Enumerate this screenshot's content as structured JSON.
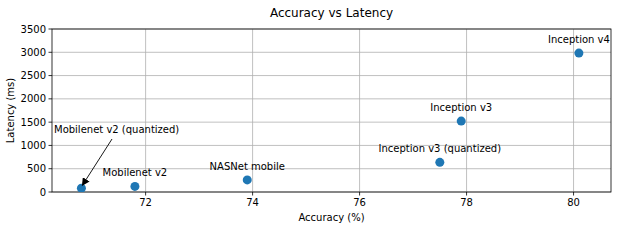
{
  "chart_data": {
    "type": "scatter",
    "title": "Accuracy vs Latency",
    "x_label": "Accuracy (%)",
    "y_label": "Latency (ms)",
    "labels": [
      "Mobilenet v2 (quantized)",
      "Mobilenet v2",
      "NASNet mobile",
      "Inception v3 (quantized)",
      "Inception v3",
      "Inception v4"
    ],
    "x": [
      70.8,
      71.8,
      73.9,
      77.5,
      77.9,
      80.1
    ],
    "values": [
      80,
      120,
      260,
      637,
      1522,
      2983
    ],
    "color": "#1f77b4",
    "xlim": [
      70.25,
      80.7
    ],
    "xticks": [
      72,
      74,
      76,
      78,
      80
    ],
    "ylim": [
      0,
      3500
    ],
    "yticks": [
      0,
      500,
      1000,
      1500,
      2000,
      2500,
      3000,
      3500
    ],
    "grid": true
  }
}
